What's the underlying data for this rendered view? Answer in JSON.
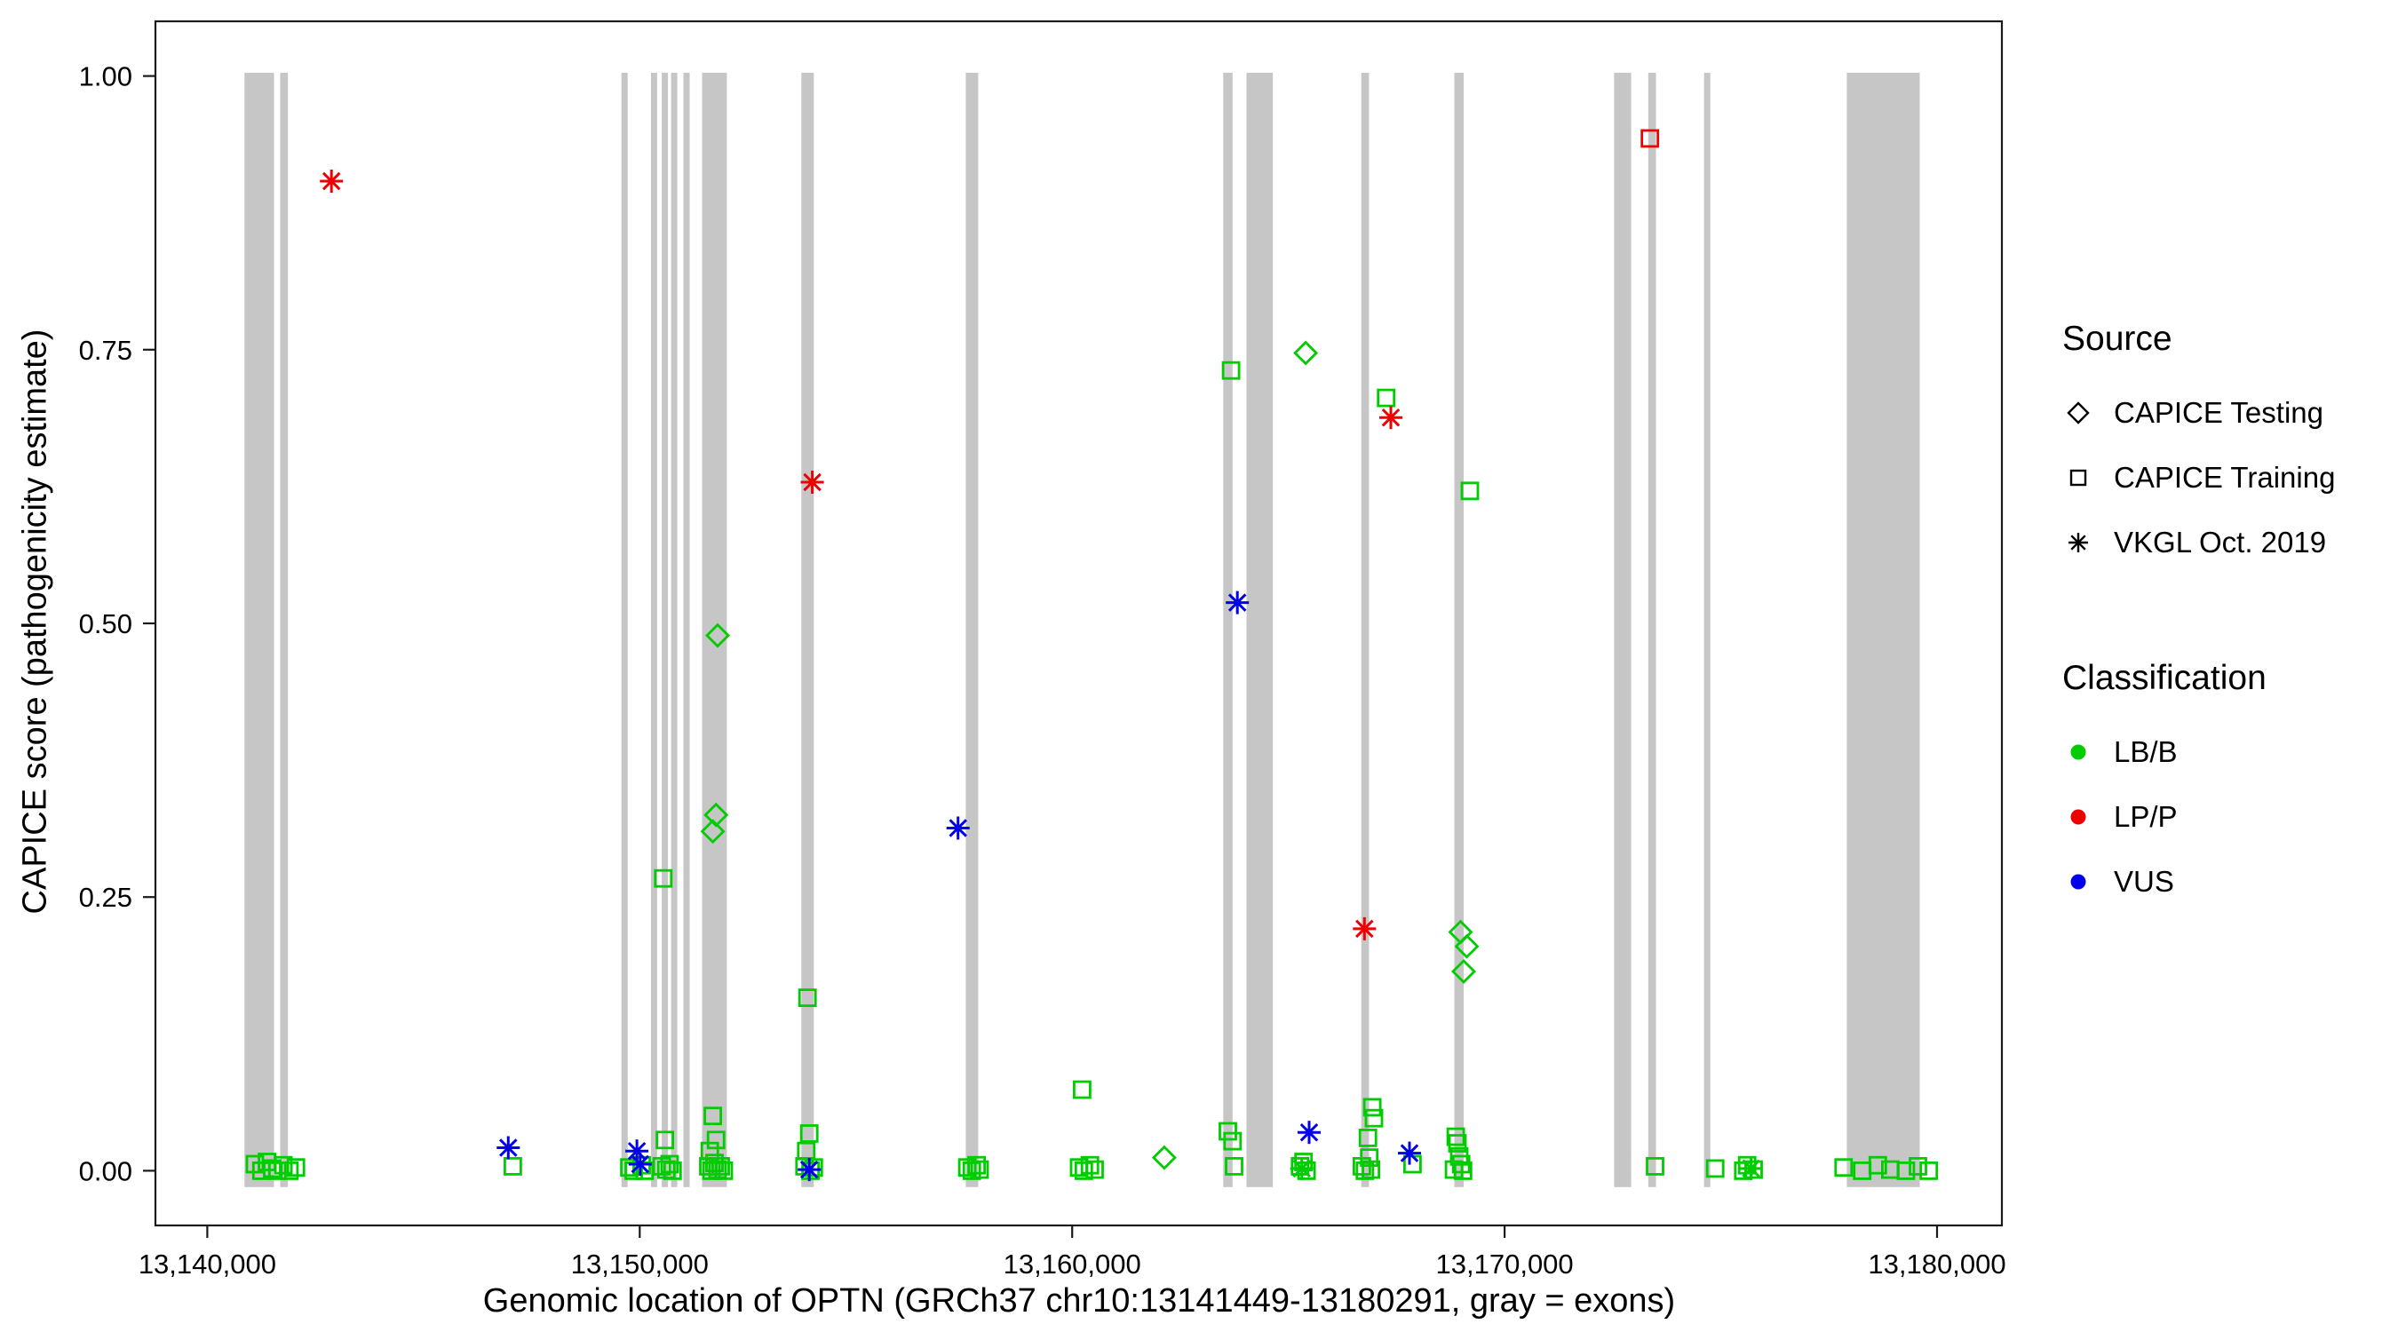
{
  "chart_data": {
    "type": "scatter",
    "title": "",
    "xlabel": "Genomic location of OPTN (GRCh37 chr10:13141449-13180291, gray = exons)",
    "ylabel": "CAPICE score (pathogenicity estimate)",
    "xlim": [
      13138800,
      13181500
    ],
    "ylim": [
      -0.05,
      1.05
    ],
    "x_ticks": [
      {
        "value": 13140000,
        "label": "13,140,000"
      },
      {
        "value": 13150000,
        "label": "13,150,000"
      },
      {
        "value": 13160000,
        "label": "13,160,000"
      },
      {
        "value": 13170000,
        "label": "13,170,000"
      },
      {
        "value": 13180000,
        "label": "13,180,000"
      }
    ],
    "y_ticks": [
      {
        "value": 0.0,
        "label": "0.00"
      },
      {
        "value": 0.25,
        "label": "0.25"
      },
      {
        "value": 0.5,
        "label": "0.50"
      },
      {
        "value": 0.75,
        "label": "0.75"
      },
      {
        "value": 1.0,
        "label": "1.00"
      }
    ],
    "layout": {
      "legend_position": "right",
      "grid": false,
      "background": "#FFFFFF"
    },
    "exon_color": "#C6C6C6",
    "exon_y_range": [
      -0.015,
      1.003
    ],
    "exons": [
      [
        13140861,
        13141542
      ],
      [
        13141686,
        13141865
      ],
      [
        13149577,
        13149720
      ],
      [
        13150258,
        13150402
      ],
      [
        13150509,
        13150653
      ],
      [
        13150724,
        13150868
      ],
      [
        13151011,
        13151155
      ],
      [
        13151442,
        13152016
      ],
      [
        13153737,
        13154024
      ],
      [
        13157540,
        13157827
      ],
      [
        13163494,
        13163709
      ],
      [
        13164032,
        13164642
      ],
      [
        13166686,
        13166865
      ],
      [
        13168838,
        13169053
      ],
      [
        13172533,
        13172927
      ],
      [
        13173322,
        13173501
      ],
      [
        13174613,
        13174757
      ],
      [
        13177913,
        13179599
      ]
    ],
    "class_colors": {
      "LB/B": "#00CC00",
      "LP/P": "#EE0000",
      "VUS": "#0000EE"
    },
    "shape_meaning": {
      "diamond": "CAPICE Testing",
      "square": "CAPICE Training",
      "asterisk": "VKGL Oct. 2019"
    },
    "points": [
      {
        "x": 13151690,
        "y": 0.31,
        "shape": "diamond",
        "cls": "LB/B"
      },
      {
        "x": 13151765,
        "y": 0.325,
        "shape": "diamond",
        "cls": "LB/B"
      },
      {
        "x": 13151800,
        "y": 0.489,
        "shape": "diamond",
        "cls": "LB/B"
      },
      {
        "x": 13162130,
        "y": 0.012,
        "shape": "diamond",
        "cls": "LB/B"
      },
      {
        "x": 13165400,
        "y": 0.747,
        "shape": "diamond",
        "cls": "LB/B"
      },
      {
        "x": 13168982,
        "y": 0.218,
        "shape": "diamond",
        "cls": "LB/B"
      },
      {
        "x": 13169126,
        "y": 0.205,
        "shape": "diamond",
        "cls": "LB/B"
      },
      {
        "x": 13169054,
        "y": 0.182,
        "shape": "diamond",
        "cls": "LB/B"
      },
      {
        "x": 13141100,
        "y": 0.006,
        "shape": "square",
        "cls": "LB/B"
      },
      {
        "x": 13141250,
        "y": 0.0,
        "shape": "square",
        "cls": "LB/B"
      },
      {
        "x": 13141380,
        "y": 0.008,
        "shape": "square",
        "cls": "LB/B"
      },
      {
        "x": 13141500,
        "y": 0.002,
        "shape": "square",
        "cls": "LB/B"
      },
      {
        "x": 13141620,
        "y": 0.0,
        "shape": "square",
        "cls": "LB/B"
      },
      {
        "x": 13141760,
        "y": 0.005,
        "shape": "square",
        "cls": "LB/B"
      },
      {
        "x": 13141900,
        "y": 0.0,
        "shape": "square",
        "cls": "LB/B"
      },
      {
        "x": 13142050,
        "y": 0.003,
        "shape": "square",
        "cls": "LB/B"
      },
      {
        "x": 13147065,
        "y": 0.004,
        "shape": "square",
        "cls": "LB/B"
      },
      {
        "x": 13149760,
        "y": 0.003,
        "shape": "square",
        "cls": "LB/B"
      },
      {
        "x": 13149860,
        "y": 0.0,
        "shape": "square",
        "cls": "LB/B"
      },
      {
        "x": 13150045,
        "y": 0.005,
        "shape": "square",
        "cls": "LB/B"
      },
      {
        "x": 13150115,
        "y": 0.0,
        "shape": "square",
        "cls": "LB/B"
      },
      {
        "x": 13150545,
        "y": 0.267,
        "shape": "square",
        "cls": "LB/B"
      },
      {
        "x": 13150580,
        "y": 0.028,
        "shape": "square",
        "cls": "LB/B"
      },
      {
        "x": 13150510,
        "y": 0.004,
        "shape": "square",
        "cls": "LB/B"
      },
      {
        "x": 13150615,
        "y": 0.001,
        "shape": "square",
        "cls": "LB/B"
      },
      {
        "x": 13150690,
        "y": 0.006,
        "shape": "square",
        "cls": "LB/B"
      },
      {
        "x": 13150760,
        "y": 0.0,
        "shape": "square",
        "cls": "LB/B"
      },
      {
        "x": 13151690,
        "y": 0.05,
        "shape": "square",
        "cls": "LB/B"
      },
      {
        "x": 13151765,
        "y": 0.028,
        "shape": "square",
        "cls": "LB/B"
      },
      {
        "x": 13151620,
        "y": 0.018,
        "shape": "square",
        "cls": "LB/B"
      },
      {
        "x": 13151585,
        "y": 0.004,
        "shape": "square",
        "cls": "LB/B"
      },
      {
        "x": 13151657,
        "y": 0.0,
        "shape": "square",
        "cls": "LB/B"
      },
      {
        "x": 13151729,
        "y": 0.007,
        "shape": "square",
        "cls": "LB/B"
      },
      {
        "x": 13151800,
        "y": 0.001,
        "shape": "square",
        "cls": "LB/B"
      },
      {
        "x": 13151872,
        "y": 0.004,
        "shape": "square",
        "cls": "LB/B"
      },
      {
        "x": 13151944,
        "y": 0.0,
        "shape": "square",
        "cls": "LB/B"
      },
      {
        "x": 13153880,
        "y": 0.158,
        "shape": "square",
        "cls": "LB/B"
      },
      {
        "x": 13153920,
        "y": 0.034,
        "shape": "square",
        "cls": "LB/B"
      },
      {
        "x": 13153850,
        "y": 0.018,
        "shape": "square",
        "cls": "LB/B"
      },
      {
        "x": 13153810,
        "y": 0.004,
        "shape": "square",
        "cls": "LB/B"
      },
      {
        "x": 13153950,
        "y": 0.0,
        "shape": "square",
        "cls": "LB/B"
      },
      {
        "x": 13154025,
        "y": 0.003,
        "shape": "square",
        "cls": "LB/B"
      },
      {
        "x": 13157575,
        "y": 0.003,
        "shape": "square",
        "cls": "LB/B"
      },
      {
        "x": 13157680,
        "y": 0.0,
        "shape": "square",
        "cls": "LB/B"
      },
      {
        "x": 13157790,
        "y": 0.005,
        "shape": "square",
        "cls": "LB/B"
      },
      {
        "x": 13157860,
        "y": 0.001,
        "shape": "square",
        "cls": "LB/B"
      },
      {
        "x": 13160230,
        "y": 0.074,
        "shape": "square",
        "cls": "LB/B"
      },
      {
        "x": 13160160,
        "y": 0.003,
        "shape": "square",
        "cls": "LB/B"
      },
      {
        "x": 13160270,
        "y": 0.0,
        "shape": "square",
        "cls": "LB/B"
      },
      {
        "x": 13160410,
        "y": 0.005,
        "shape": "square",
        "cls": "LB/B"
      },
      {
        "x": 13160520,
        "y": 0.001,
        "shape": "square",
        "cls": "LB/B"
      },
      {
        "x": 13163675,
        "y": 0.731,
        "shape": "square",
        "cls": "LB/B"
      },
      {
        "x": 13163600,
        "y": 0.036,
        "shape": "square",
        "cls": "LB/B"
      },
      {
        "x": 13163710,
        "y": 0.027,
        "shape": "square",
        "cls": "LB/B"
      },
      {
        "x": 13163745,
        "y": 0.004,
        "shape": "square",
        "cls": "LB/B"
      },
      {
        "x": 13165270,
        "y": 0.004,
        "shape": "square",
        "cls": "LB/B"
      },
      {
        "x": 13165350,
        "y": 0.008,
        "shape": "square",
        "cls": "LB/B"
      },
      {
        "x": 13165420,
        "y": 0.0,
        "shape": "square",
        "cls": "LB/B"
      },
      {
        "x": 13166940,
        "y": 0.058,
        "shape": "square",
        "cls": "LB/B"
      },
      {
        "x": 13166980,
        "y": 0.048,
        "shape": "square",
        "cls": "LB/B"
      },
      {
        "x": 13166840,
        "y": 0.03,
        "shape": "square",
        "cls": "LB/B"
      },
      {
        "x": 13166870,
        "y": 0.012,
        "shape": "square",
        "cls": "LB/B"
      },
      {
        "x": 13166700,
        "y": 0.004,
        "shape": "square",
        "cls": "LB/B"
      },
      {
        "x": 13166770,
        "y": 0.0,
        "shape": "square",
        "cls": "LB/B"
      },
      {
        "x": 13166910,
        "y": 0.001,
        "shape": "square",
        "cls": "LB/B"
      },
      {
        "x": 13167261,
        "y": 0.706,
        "shape": "square",
        "cls": "LB/B"
      },
      {
        "x": 13167870,
        "y": 0.006,
        "shape": "square",
        "cls": "LB/B"
      },
      {
        "x": 13169198,
        "y": 0.621,
        "shape": "square",
        "cls": "LB/B"
      },
      {
        "x": 13168870,
        "y": 0.031,
        "shape": "square",
        "cls": "LB/B"
      },
      {
        "x": 13168910,
        "y": 0.025,
        "shape": "square",
        "cls": "LB/B"
      },
      {
        "x": 13168950,
        "y": 0.013,
        "shape": "square",
        "cls": "LB/B"
      },
      {
        "x": 13168995,
        "y": 0.006,
        "shape": "square",
        "cls": "LB/B"
      },
      {
        "x": 13169040,
        "y": 0.0,
        "shape": "square",
        "cls": "LB/B"
      },
      {
        "x": 13168830,
        "y": 0.001,
        "shape": "square",
        "cls": "LB/B"
      },
      {
        "x": 13173480,
        "y": 0.004,
        "shape": "square",
        "cls": "LB/B"
      },
      {
        "x": 13174870,
        "y": 0.002,
        "shape": "square",
        "cls": "LB/B"
      },
      {
        "x": 13175520,
        "y": 0.0,
        "shape": "square",
        "cls": "LB/B"
      },
      {
        "x": 13175610,
        "y": 0.005,
        "shape": "square",
        "cls": "LB/B"
      },
      {
        "x": 13175760,
        "y": 0.001,
        "shape": "square",
        "cls": "LB/B"
      },
      {
        "x": 13177840,
        "y": 0.003,
        "shape": "square",
        "cls": "LB/B"
      },
      {
        "x": 13178270,
        "y": 0.0,
        "shape": "square",
        "cls": "LB/B"
      },
      {
        "x": 13178630,
        "y": 0.005,
        "shape": "square",
        "cls": "LB/B"
      },
      {
        "x": 13178920,
        "y": 0.001,
        "shape": "square",
        "cls": "LB/B"
      },
      {
        "x": 13179280,
        "y": 0.0,
        "shape": "square",
        "cls": "LB/B"
      },
      {
        "x": 13179560,
        "y": 0.004,
        "shape": "square",
        "cls": "LB/B"
      },
      {
        "x": 13179810,
        "y": 0.0,
        "shape": "square",
        "cls": "LB/B"
      },
      {
        "x": 13173360,
        "y": 0.943,
        "shape": "square",
        "cls": "LP/P"
      },
      {
        "x": 13142870,
        "y": 0.904,
        "shape": "asterisk",
        "cls": "LP/P"
      },
      {
        "x": 13153990,
        "y": 0.629,
        "shape": "asterisk",
        "cls": "LP/P"
      },
      {
        "x": 13166760,
        "y": 0.221,
        "shape": "asterisk",
        "cls": "LP/P"
      },
      {
        "x": 13167370,
        "y": 0.688,
        "shape": "asterisk",
        "cls": "LP/P"
      },
      {
        "x": 13146960,
        "y": 0.021,
        "shape": "asterisk",
        "cls": "VUS"
      },
      {
        "x": 13149935,
        "y": 0.018,
        "shape": "asterisk",
        "cls": "VUS"
      },
      {
        "x": 13150010,
        "y": 0.006,
        "shape": "asterisk",
        "cls": "VUS"
      },
      {
        "x": 13153920,
        "y": 0.001,
        "shape": "asterisk",
        "cls": "VUS"
      },
      {
        "x": 13157360,
        "y": 0.313,
        "shape": "asterisk",
        "cls": "VUS"
      },
      {
        "x": 13163820,
        "y": 0.519,
        "shape": "asterisk",
        "cls": "VUS"
      },
      {
        "x": 13165480,
        "y": 0.035,
        "shape": "asterisk",
        "cls": "VUS"
      },
      {
        "x": 13167800,
        "y": 0.016,
        "shape": "asterisk",
        "cls": "VUS"
      },
      {
        "x": 13165310,
        "y": 0.002,
        "shape": "asterisk",
        "cls": "LB/B"
      },
      {
        "x": 13175700,
        "y": 0.002,
        "shape": "asterisk",
        "cls": "LB/B"
      }
    ]
  },
  "legend": {
    "source": {
      "title": "Source",
      "items": [
        {
          "label": "CAPICE Testing",
          "marker": "diamond"
        },
        {
          "label": "CAPICE Training",
          "marker": "square"
        },
        {
          "label": "VKGL Oct. 2019",
          "marker": "asterisk"
        }
      ]
    },
    "classification": {
      "title": "Classification",
      "items": [
        {
          "label": "LB/B",
          "color": "#00CC00"
        },
        {
          "label": "LP/P",
          "color": "#EE0000"
        },
        {
          "label": "VUS",
          "color": "#0000EE"
        }
      ]
    }
  }
}
